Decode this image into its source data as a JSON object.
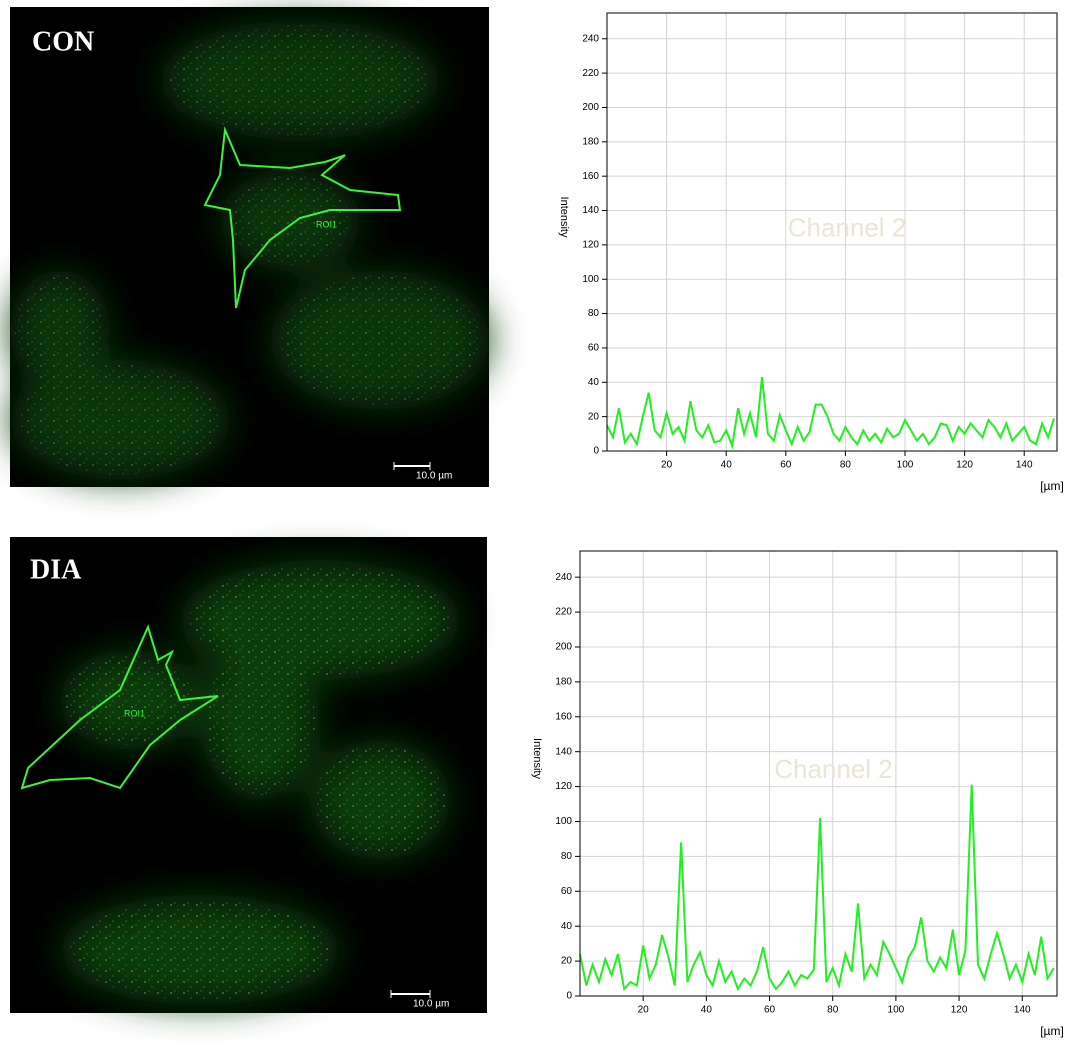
{
  "panels": [
    {
      "label": "CON",
      "roi": "ROI1",
      "scale_bar": "10.0 µm"
    },
    {
      "label": "DIA",
      "roi": "ROI1",
      "scale_bar": "10.0 µm"
    }
  ],
  "chart_data": [
    {
      "type": "line",
      "y_label": "Intensity",
      "x_label": "[µm]",
      "watermark": "Channel 2",
      "color": "#22ee22",
      "x": [
        0,
        2,
        4,
        6,
        8,
        10,
        12,
        14,
        16,
        18,
        20,
        22,
        24,
        26,
        28,
        30,
        32,
        34,
        36,
        38,
        40,
        42,
        44,
        46,
        48,
        50,
        52,
        54,
        56,
        58,
        60,
        62,
        64,
        66,
        68,
        70,
        72,
        74,
        76,
        78,
        80,
        82,
        84,
        86,
        88,
        90,
        92,
        94,
        96,
        98,
        100,
        102,
        104,
        106,
        108,
        110,
        112,
        114,
        116,
        118,
        120,
        122,
        124,
        126,
        128,
        130,
        132,
        134,
        136,
        138,
        140,
        142,
        144,
        146,
        148,
        150
      ],
      "values": [
        15,
        8,
        25,
        5,
        10,
        4,
        20,
        34,
        12,
        8,
        22,
        10,
        14,
        6,
        29,
        12,
        8,
        15,
        5,
        6,
        12,
        3,
        25,
        10,
        22,
        8,
        43,
        10,
        6,
        21,
        12,
        4,
        14,
        6,
        11,
        27,
        27,
        20,
        10,
        6,
        14,
        8,
        4,
        12,
        6,
        10,
        5,
        13,
        8,
        10,
        18,
        12,
        6,
        10,
        4,
        8,
        16,
        15,
        6,
        14,
        10,
        16,
        12,
        8,
        18,
        14,
        8,
        16,
        6,
        10,
        14,
        6,
        4,
        16,
        8,
        19
      ],
      "xlim": [
        0,
        151
      ],
      "ylim": [
        0,
        255
      ],
      "xticks": [
        20,
        40,
        60,
        80,
        100,
        120,
        140
      ],
      "yticks": [
        0,
        20,
        40,
        60,
        80,
        100,
        120,
        140,
        160,
        180,
        200,
        220,
        240
      ],
      "grid": true
    },
    {
      "type": "line",
      "y_label": "Intensity",
      "x_label": "[µm]",
      "watermark": "Channel 2",
      "color": "#22ee22",
      "x": [
        0,
        2,
        4,
        6,
        8,
        10,
        12,
        14,
        16,
        18,
        20,
        22,
        24,
        26,
        28,
        30,
        32,
        34,
        36,
        38,
        40,
        42,
        44,
        46,
        48,
        50,
        52,
        54,
        56,
        58,
        60,
        62,
        64,
        66,
        68,
        70,
        72,
        74,
        76,
        78,
        80,
        82,
        84,
        86,
        88,
        90,
        92,
        94,
        96,
        98,
        100,
        102,
        104,
        106,
        108,
        110,
        112,
        114,
        116,
        118,
        120,
        122,
        124,
        126,
        128,
        130,
        132,
        134,
        136,
        138,
        140,
        142,
        144,
        146,
        148,
        150
      ],
      "values": [
        24,
        6,
        18,
        8,
        21,
        12,
        24,
        4,
        8,
        6,
        29,
        10,
        18,
        35,
        22,
        6,
        88,
        8,
        18,
        25,
        12,
        6,
        20,
        8,
        14,
        4,
        10,
        6,
        14,
        28,
        10,
        4,
        8,
        14,
        6,
        12,
        10,
        15,
        102,
        8,
        16,
        6,
        24,
        14,
        53,
        10,
        18,
        12,
        31,
        24,
        16,
        8,
        22,
        28,
        45,
        20,
        14,
        22,
        16,
        38,
        12,
        26,
        121,
        18,
        10,
        24,
        36,
        24,
        10,
        18,
        8,
        24,
        12,
        34,
        10,
        16
      ],
      "xlim": [
        0,
        151
      ],
      "ylim": [
        0,
        255
      ],
      "xticks": [
        20,
        40,
        60,
        80,
        100,
        120,
        140
      ],
      "yticks": [
        0,
        20,
        40,
        60,
        80,
        100,
        120,
        140,
        160,
        180,
        200,
        220,
        240
      ],
      "grid": true
    }
  ]
}
